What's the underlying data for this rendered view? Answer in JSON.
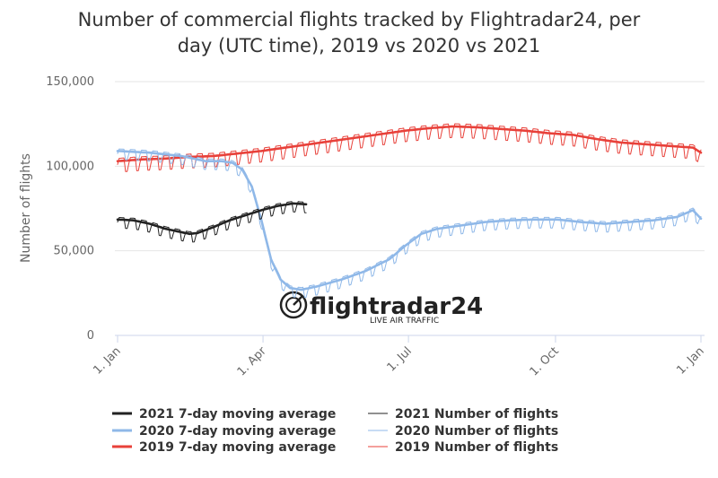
{
  "title_lines": [
    "Number of commercial flights tracked by Flightradar24, per",
    "day (UTC time), 2019 vs 2020 vs 2021"
  ],
  "watermark": {
    "brand": "flightradar24",
    "tagline": "LIVE AIR TRAFFIC"
  },
  "chart_data": {
    "type": "line",
    "ylabel": "Number of flights",
    "xlabel": "",
    "ylim": [
      0,
      150000
    ],
    "xlim_day_of_year": [
      0,
      365
    ],
    "y_ticks": [
      {
        "value": 0,
        "label": "0"
      },
      {
        "value": 50000,
        "label": "50,000"
      },
      {
        "value": 100000,
        "label": "100,000"
      },
      {
        "value": 150000,
        "label": "150,000"
      }
    ],
    "x_ticks": [
      {
        "day": 0,
        "label": "1. Jan"
      },
      {
        "day": 91,
        "label": "1. Apr"
      },
      {
        "day": 182,
        "label": "1. Jul"
      },
      {
        "day": 274,
        "label": "1. Oct"
      },
      {
        "day": 365,
        "label": "1. Jan"
      }
    ],
    "legend": "bottom",
    "colors": {
      "2021": "#222222",
      "2020": "#8fb8e8",
      "2019": "#e8413a"
    },
    "series": [
      {
        "name": "2019 7-day moving average",
        "year": "2019",
        "kind": "average",
        "x": [
          0,
          15,
          30,
          45,
          60,
          75,
          90,
          105,
          120,
          135,
          150,
          165,
          180,
          195,
          210,
          225,
          240,
          255,
          270,
          285,
          300,
          315,
          330,
          345,
          360,
          365
        ],
        "y": [
          103000,
          104000,
          104500,
          105500,
          106000,
          107500,
          109000,
          111000,
          113000,
          115000,
          117000,
          119000,
          121000,
          122500,
          123500,
          123000,
          122000,
          121000,
          119500,
          118500,
          116000,
          114000,
          113000,
          112000,
          111000,
          108000
        ]
      },
      {
        "name": "2019 Number of flights",
        "year": "2019",
        "kind": "daily",
        "x": [
          0,
          15,
          30,
          45,
          60,
          75,
          90,
          105,
          120,
          135,
          150,
          165,
          180,
          195,
          210,
          225,
          240,
          255,
          270,
          285,
          300,
          315,
          330,
          345,
          360,
          365
        ],
        "y": [
          103000,
          104000,
          104500,
          105500,
          106000,
          107500,
          109000,
          111000,
          113000,
          115000,
          117000,
          119000,
          121000,
          122500,
          123500,
          123000,
          122000,
          121000,
          119500,
          118500,
          116000,
          114000,
          113000,
          112000,
          111000,
          108000
        ],
        "weekly_amplitude": 6500
      },
      {
        "name": "2020 7-day moving average",
        "year": "2020",
        "kind": "average",
        "x": [
          0,
          20,
          40,
          55,
          65,
          72,
          78,
          84,
          90,
          96,
          102,
          108,
          115,
          125,
          140,
          155,
          170,
          180,
          190,
          200,
          215,
          230,
          245,
          260,
          275,
          290,
          305,
          320,
          335,
          350,
          360,
          365
        ],
        "y": [
          109000,
          108000,
          106000,
          103000,
          103000,
          102000,
          98000,
          88000,
          68000,
          45000,
          33000,
          28000,
          27000,
          29000,
          33000,
          38000,
          45000,
          53000,
          60000,
          63000,
          65000,
          67000,
          68000,
          68500,
          68500,
          67000,
          66000,
          67000,
          68000,
          70000,
          74000,
          69000
        ]
      },
      {
        "name": "2020 Number of flights",
        "year": "2020",
        "kind": "daily",
        "x": [
          0,
          20,
          40,
          55,
          65,
          72,
          78,
          84,
          90,
          96,
          102,
          108,
          115,
          125,
          140,
          155,
          170,
          180,
          190,
          200,
          215,
          230,
          245,
          260,
          275,
          290,
          305,
          320,
          335,
          350,
          360,
          365
        ],
        "y": [
          109000,
          108000,
          106000,
          103000,
          103000,
          102000,
          98000,
          88000,
          68000,
          45000,
          33000,
          28000,
          27000,
          29000,
          33000,
          38000,
          45000,
          53000,
          60000,
          63000,
          65000,
          67000,
          68000,
          68500,
          68500,
          67000,
          66000,
          67000,
          68000,
          70000,
          74000,
          69000
        ],
        "weekly_amplitude": 5000
      },
      {
        "name": "2021 7-day moving average",
        "year": "2021",
        "kind": "average",
        "x": [
          0,
          10,
          20,
          30,
          40,
          45,
          50,
          60,
          70,
          80,
          90,
          100,
          110,
          118
        ],
        "y": [
          68500,
          68000,
          66000,
          63000,
          61000,
          60000,
          60500,
          64000,
          68000,
          71000,
          74000,
          76500,
          78000,
          77500
        ]
      },
      {
        "name": "2021 Number of flights",
        "year": "2021",
        "kind": "daily",
        "x": [
          0,
          10,
          20,
          30,
          40,
          45,
          50,
          60,
          70,
          80,
          90,
          100,
          110,
          118
        ],
        "y": [
          68500,
          68000,
          66000,
          63000,
          61000,
          60000,
          60500,
          64000,
          68000,
          71000,
          74000,
          76500,
          78000,
          77500
        ],
        "weekly_amplitude": 5000
      }
    ]
  }
}
